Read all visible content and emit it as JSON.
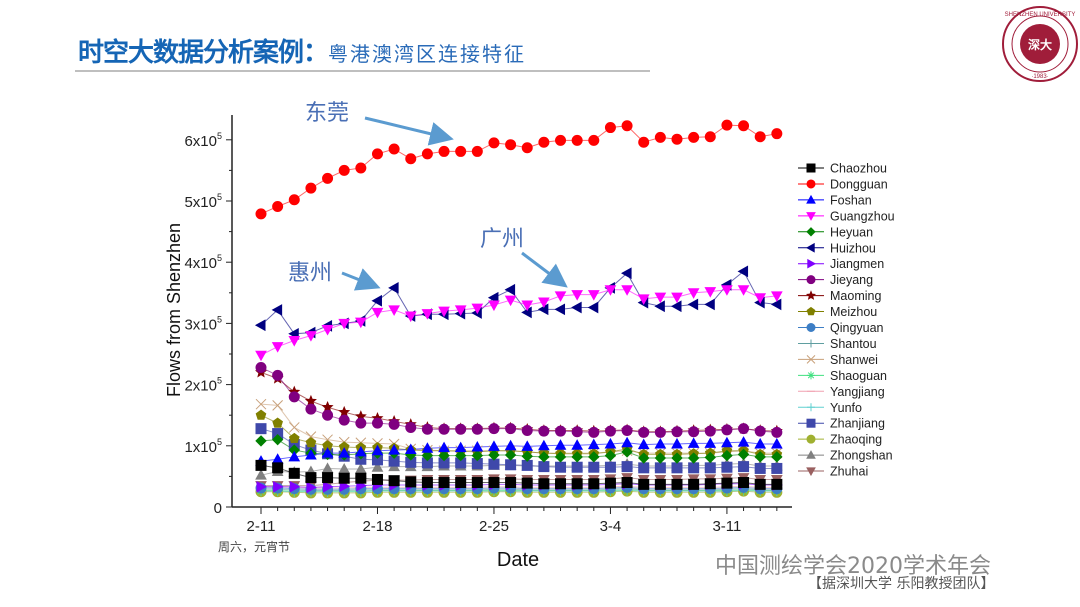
{
  "slide": {
    "title": "时空大数据分析案例：",
    "subtitle": "粤港澳湾区连接特征",
    "logo_text": "SHENZHEN UNIVERSITY · 1983 · 深圳大學",
    "note": "周六，元宵节",
    "watermark": "中国测绘学会2020学术年会",
    "credit": "【据深圳大学 乐阳教授团队】"
  },
  "annotations": [
    {
      "label": "东莞",
      "series": "Dongguan"
    },
    {
      "label": "惠州",
      "series": "Huizhou"
    },
    {
      "label": "广州",
      "series": "Guangzhou"
    }
  ],
  "colors": {
    "title": "#1565b5",
    "annotation": "#4a6fb5",
    "arrow": "#5b9bd0",
    "logo": "#a01d3a"
  },
  "chart_data": {
    "type": "line",
    "xlabel": "Date",
    "ylabel": "Flows from Shenzhen",
    "x_start": "2-11",
    "x_end": "3-14",
    "x_ticks": [
      "2-11",
      "2-18",
      "2-25",
      "3-4",
      "3-11"
    ],
    "y_ticks": [
      {
        "value": 0,
        "label": "0"
      },
      {
        "value": 100000,
        "label": "1x10",
        "exp": "5"
      },
      {
        "value": 200000,
        "label": "2x10",
        "exp": "5"
      },
      {
        "value": 300000,
        "label": "3x10",
        "exp": "5"
      },
      {
        "value": 400000,
        "label": "4x10",
        "exp": "5"
      },
      {
        "value": 500000,
        "label": "5x10",
        "exp": "5"
      },
      {
        "value": 600000,
        "label": "6x10",
        "exp": "5"
      }
    ],
    "ylim": [
      0,
      650000
    ],
    "legend_position": "right",
    "unit_multiplier": 1000,
    "series": [
      {
        "name": "Chaozhou",
        "color": "#000000",
        "marker": "square",
        "values": [
          68,
          64,
          55,
          48,
          48,
          47,
          47,
          45,
          43,
          41,
          40,
          40,
          40,
          40,
          40,
          40,
          39,
          38,
          38,
          38,
          38,
          39,
          40,
          37,
          37,
          37,
          37,
          38,
          39,
          40,
          37,
          37
        ]
      },
      {
        "name": "Dongguan",
        "color": "#ff0000",
        "marker": "circle",
        "values": [
          479,
          491,
          502,
          521,
          537,
          550,
          554,
          577,
          585,
          569,
          577,
          581,
          581,
          581,
          595,
          592,
          587,
          596,
          599,
          599,
          599,
          620,
          623,
          596,
          604,
          601,
          604,
          605,
          624,
          623,
          605,
          610
        ]
      },
      {
        "name": "Foshan",
        "color": "#0000ff",
        "marker": "triangle-up",
        "values": [
          75,
          78,
          82,
          85,
          88,
          88,
          90,
          92,
          93,
          94,
          96,
          97,
          97,
          98,
          99,
          100,
          99,
          100,
          101,
          101,
          102,
          103,
          105,
          102,
          103,
          103,
          104,
          104,
          105,
          106,
          103,
          103
        ]
      },
      {
        "name": "Guangzhou",
        "color": "#ff00ff",
        "marker": "triangle-down",
        "values": [
          248,
          262,
          272,
          280,
          290,
          300,
          302,
          318,
          322,
          312,
          316,
          320,
          322,
          325,
          330,
          338,
          330,
          335,
          345,
          347,
          347,
          355,
          355,
          340,
          343,
          343,
          350,
          352,
          355,
          355,
          342,
          345
        ]
      },
      {
        "name": "Heyuan",
        "color": "#008000",
        "marker": "diamond",
        "values": [
          108,
          110,
          93,
          88,
          86,
          85,
          87,
          88,
          88,
          85,
          84,
          84,
          84,
          84,
          85,
          85,
          83,
          82,
          82,
          82,
          82,
          84,
          90,
          80,
          80,
          80,
          80,
          81,
          84,
          86,
          82,
          82
        ]
      },
      {
        "name": "Huizhou",
        "color": "#000080",
        "marker": "triangle-left",
        "values": [
          297,
          322,
          283,
          285,
          296,
          300,
          304,
          337,
          358,
          312,
          315,
          315,
          316,
          317,
          342,
          355,
          318,
          323,
          323,
          326,
          326,
          358,
          382,
          334,
          328,
          328,
          331,
          331,
          363,
          385,
          334,
          331
        ]
      },
      {
        "name": "Jiangmen",
        "color": "#8000ff",
        "marker": "triangle-right",
        "values": [
          33,
          33,
          33,
          32,
          33,
          34,
          35,
          36,
          36,
          36,
          36,
          36,
          36,
          36,
          37,
          37,
          36,
          36,
          36,
          36,
          36,
          37,
          38,
          36,
          36,
          36,
          36,
          37,
          38,
          38,
          36,
          36
        ]
      },
      {
        "name": "Jieyang",
        "color": "#800080",
        "marker": "hexagon",
        "values": [
          228,
          215,
          180,
          160,
          150,
          142,
          137,
          137,
          135,
          130,
          127,
          127,
          127,
          127,
          128,
          128,
          125,
          124,
          124,
          123,
          122,
          124,
          125,
          122,
          122,
          123,
          123,
          124,
          126,
          128,
          124,
          122
        ]
      },
      {
        "name": "Maoming",
        "color": "#800000",
        "marker": "star",
        "values": [
          220,
          210,
          188,
          173,
          163,
          155,
          148,
          145,
          140,
          135,
          130,
          128,
          128,
          128,
          129,
          129,
          127,
          125,
          125,
          125,
          124,
          125,
          126,
          123,
          123,
          124,
          125,
          126,
          127,
          128,
          125,
          124
        ]
      },
      {
        "name": "Meizhou",
        "color": "#808000",
        "marker": "pentagon",
        "values": [
          150,
          137,
          112,
          105,
          100,
          98,
          97,
          97,
          96,
          93,
          92,
          92,
          91,
          90,
          92,
          92,
          90,
          88,
          87,
          87,
          87,
          90,
          95,
          86,
          86,
          86,
          87,
          88,
          92,
          92,
          86,
          86
        ]
      },
      {
        "name": "Qingyuan",
        "color": "#3d7ec5",
        "marker": "sphere",
        "values": [
          31,
          31,
          30,
          29,
          29,
          29,
          30,
          30,
          30,
          30,
          30,
          30,
          30,
          30,
          31,
          31,
          30,
          30,
          30,
          30,
          30,
          31,
          32,
          30,
          30,
          30,
          30,
          30,
          31,
          32,
          30,
          30
        ]
      },
      {
        "name": "Shantou",
        "color": "#5f9ea0",
        "marker": "plus",
        "values": [
          29,
          29,
          28,
          27,
          27,
          27,
          28,
          28,
          28,
          28,
          28,
          28,
          28,
          28,
          29,
          29,
          28,
          28,
          28,
          28,
          28,
          29,
          30,
          28,
          28,
          28,
          28,
          28,
          29,
          30,
          28,
          28
        ]
      },
      {
        "name": "Shanwei",
        "color": "#c8a07a",
        "marker": "cross",
        "values": [
          168,
          166,
          130,
          115,
          110,
          106,
          105,
          104,
          103,
          95,
          93,
          92,
          92,
          92,
          92,
          92,
          90,
          88,
          88,
          88,
          88,
          90,
          92,
          88,
          88,
          88,
          88,
          88,
          90,
          92,
          88,
          88
        ]
      },
      {
        "name": "Shaoguan",
        "color": "#40e080",
        "marker": "asterisk",
        "values": [
          27,
          27,
          26,
          26,
          26,
          26,
          26,
          27,
          27,
          27,
          27,
          27,
          27,
          27,
          27,
          27,
          27,
          27,
          27,
          27,
          27,
          27,
          28,
          27,
          27,
          27,
          27,
          27,
          27,
          28,
          27,
          27
        ]
      },
      {
        "name": "Yangjiang",
        "color": "#f0a0b0",
        "marker": "dash",
        "values": [
          33,
          33,
          32,
          31,
          31,
          31,
          32,
          32,
          32,
          32,
          32,
          32,
          32,
          32,
          33,
          33,
          32,
          32,
          32,
          32,
          32,
          33,
          34,
          32,
          32,
          32,
          32,
          32,
          33,
          34,
          32,
          32
        ]
      },
      {
        "name": "Yunfo",
        "color": "#60d0d0",
        "marker": "plus",
        "values": [
          26,
          26,
          25,
          25,
          25,
          25,
          25,
          26,
          26,
          26,
          26,
          26,
          26,
          26,
          26,
          26,
          26,
          26,
          26,
          26,
          26,
          26,
          27,
          26,
          26,
          26,
          26,
          26,
          26,
          27,
          26,
          26
        ]
      },
      {
        "name": "Zhanjiang",
        "color": "#3f48aa",
        "marker": "square",
        "values": [
          128,
          120,
          102,
          93,
          87,
          83,
          78,
          77,
          75,
          73,
          72,
          72,
          72,
          71,
          70,
          69,
          68,
          66,
          65,
          65,
          65,
          65,
          66,
          64,
          64,
          64,
          64,
          64,
          65,
          66,
          63,
          63
        ]
      },
      {
        "name": "Zhaoqing",
        "color": "#a0b030",
        "marker": "circle",
        "values": [
          25,
          25,
          24,
          23,
          23,
          23,
          23,
          24,
          24,
          24,
          24,
          24,
          24,
          24,
          25,
          25,
          24,
          24,
          24,
          24,
          24,
          25,
          26,
          24,
          24,
          24,
          24,
          24,
          25,
          26,
          24,
          24
        ]
      },
      {
        "name": "Zhongshan",
        "color": "#808080",
        "marker": "triangle-up",
        "values": [
          52,
          58,
          57,
          58,
          63,
          62,
          62,
          65,
          66,
          66,
          66,
          67,
          67,
          67,
          68,
          68,
          67,
          67,
          67,
          67,
          67,
          68,
          70,
          67,
          67,
          67,
          68,
          68,
          70,
          71,
          67,
          67
        ]
      },
      {
        "name": "Zhuhai",
        "color": "#9a6060",
        "marker": "triangle-down",
        "values": [
          35,
          35,
          35,
          35,
          37,
          40,
          42,
          44,
          44,
          44,
          45,
          45,
          45,
          45,
          46,
          46,
          45,
          45,
          45,
          45,
          45,
          46,
          48,
          45,
          45,
          45,
          46,
          46,
          47,
          48,
          45,
          45
        ]
      }
    ]
  }
}
